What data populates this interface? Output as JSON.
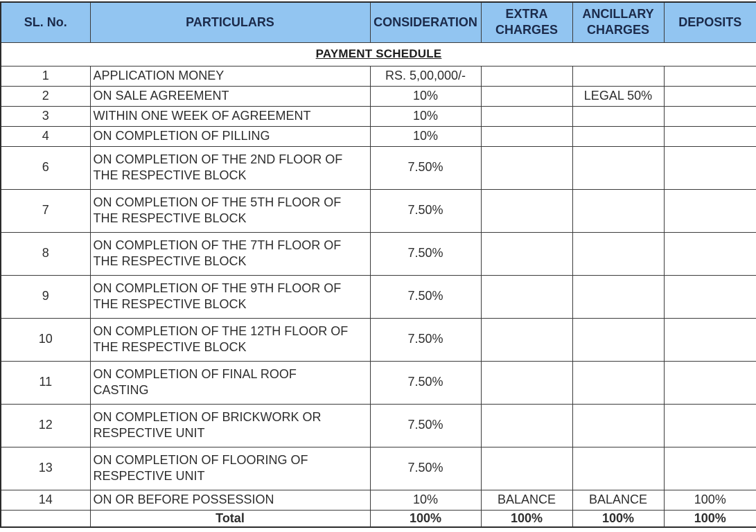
{
  "title": "PAYMENT SCHEDULE",
  "colors": {
    "header_fill": "#92c5f1",
    "header_text": "#1b2a4a",
    "body_text": "#2e2e2e",
    "border": "#3b3b3b"
  },
  "table": {
    "columns": {
      "sl": "SL. No.",
      "particulars": "PARTICULARS",
      "consideration": "CONSIDERATION",
      "extra": "EXTRA CHARGES",
      "ancillary": "ANCILLARY CHARGES",
      "deposits": "DEPOSITS"
    },
    "rows": [
      {
        "sl": "1",
        "particulars": "APPLICATION MONEY",
        "consideration": "RS. 5,00,000/-",
        "extra": "",
        "ancillary": "",
        "deposits": ""
      },
      {
        "sl": "2",
        "particulars": "ON SALE AGREEMENT",
        "consideration": "10%",
        "extra": "",
        "ancillary": "LEGAL 50%",
        "deposits": ""
      },
      {
        "sl": "3",
        "particulars": "WITHIN ONE WEEK OF AGREEMENT",
        "consideration": "10%",
        "extra": "",
        "ancillary": "",
        "deposits": ""
      },
      {
        "sl": "4",
        "particulars": "ON COMPLETION OF PILLING",
        "consideration": "10%",
        "extra": "",
        "ancillary": "",
        "deposits": ""
      },
      {
        "sl": "6",
        "particulars": "ON COMPLETION OF THE 2ND FLOOR OF\nTHE RESPECTIVE BLOCK",
        "consideration": "7.50%",
        "extra": "",
        "ancillary": "",
        "deposits": ""
      },
      {
        "sl": "7",
        "particulars": "ON COMPLETION OF THE 5TH FLOOR OF\nTHE RESPECTIVE BLOCK",
        "consideration": "7.50%",
        "extra": "",
        "ancillary": "",
        "deposits": ""
      },
      {
        "sl": "8",
        "particulars": "ON COMPLETION OF THE 7TH FLOOR OF\nTHE RESPECTIVE BLOCK",
        "consideration": "7.50%",
        "extra": "",
        "ancillary": "",
        "deposits": ""
      },
      {
        "sl": "9",
        "particulars": "ON COMPLETION OF THE 9TH FLOOR OF\nTHE RESPECTIVE BLOCK",
        "consideration": "7.50%",
        "extra": "",
        "ancillary": "",
        "deposits": ""
      },
      {
        "sl": "10",
        "particulars": "ON COMPLETION OF THE 12TH FLOOR OF\nTHE RESPECTIVE BLOCK",
        "consideration": "7.50%",
        "extra": "",
        "ancillary": "",
        "deposits": ""
      },
      {
        "sl": "11",
        "particulars": "ON COMPLETION OF FINAL ROOF\nCASTING",
        "consideration": "7.50%",
        "extra": "",
        "ancillary": "",
        "deposits": ""
      },
      {
        "sl": "12",
        "particulars": "ON COMPLETION OF BRICKWORK OR\nRESPECTIVE UNIT",
        "consideration": "7.50%",
        "extra": "",
        "ancillary": "",
        "deposits": ""
      },
      {
        "sl": "13",
        "particulars": "ON COMPLETION OF FLOORING OF\nRESPECTIVE UNIT",
        "consideration": "7.50%",
        "extra": "",
        "ancillary": "",
        "deposits": ""
      },
      {
        "sl": "14",
        "particulars": "ON OR BEFORE POSSESSION",
        "consideration": "10%",
        "extra": "BALANCE",
        "ancillary": "BALANCE",
        "deposits": "100%"
      }
    ],
    "total_row": {
      "sl": "",
      "label": "Total",
      "consideration": "100%",
      "extra": "100%",
      "ancillary": "100%",
      "deposits": "100%"
    }
  }
}
